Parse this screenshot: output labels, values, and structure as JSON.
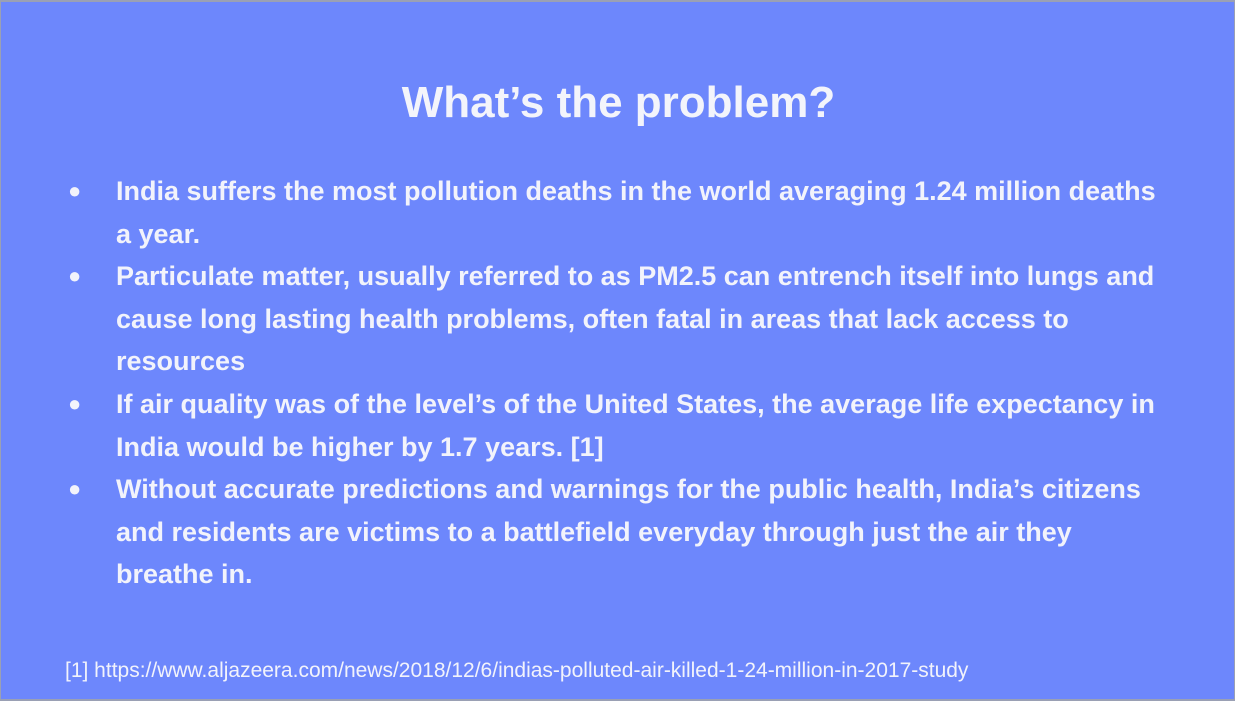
{
  "slide": {
    "title": "What’s the problem?",
    "bullet_marker": "●",
    "bullets": [
      {
        "text": "India suffers the most pollution deaths in the world averaging 1.24 million deaths a year."
      },
      {
        "text": "Particulate matter, usually referred to as PM2.5 can entrench itself into lungs and cause long lasting health problems, often fatal in areas that lack access to resources"
      },
      {
        "text": "If air quality was of the level’s of the United States, the average life expectancy in India would be higher by 1.7 years. [1]"
      },
      {
        "text": "Without accurate predictions and warnings for the public health, India’s citizens and residents are victims to a battlefield everyday through just the air they breathe in."
      }
    ],
    "footnote": "[1] https://www.aljazeera.com/news/2018/12/6/indias-polluted-air-killed-1-24-million-in-2017-study"
  },
  "colors": {
    "background": "#6d87fc",
    "text": "#f2f3fb"
  }
}
